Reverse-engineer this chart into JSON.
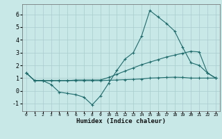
{
  "xlabel": "Humidex (Indice chaleur)",
  "background_color": "#c8e8e8",
  "grid_color": "#aacccc",
  "line_color": "#1e6b6b",
  "x_ticks": [
    0,
    1,
    2,
    3,
    4,
    5,
    6,
    7,
    8,
    9,
    10,
    11,
    12,
    13,
    14,
    15,
    16,
    17,
    18,
    19,
    20,
    21,
    22,
    23
  ],
  "y_ticks": [
    -1,
    0,
    1,
    2,
    3,
    4,
    5,
    6
  ],
  "xlim": [
    -0.5,
    23.5
  ],
  "ylim": [
    -1.6,
    6.8
  ],
  "series": [
    {
      "x": [
        0,
        1,
        2,
        3,
        4,
        5,
        6,
        7,
        8,
        9,
        10,
        11,
        12,
        13,
        14,
        15,
        16,
        17,
        18,
        19,
        20,
        21,
        22,
        23
      ],
      "y": [
        1.4,
        0.8,
        0.8,
        0.5,
        -0.1,
        -0.2,
        -0.3,
        -0.5,
        -1.1,
        -0.4,
        0.6,
        1.6,
        2.5,
        3.0,
        4.3,
        6.3,
        5.8,
        5.3,
        4.7,
        3.4,
        2.2,
        2.0,
        1.4,
        1.0
      ]
    },
    {
      "x": [
        0,
        1,
        2,
        3,
        4,
        5,
        6,
        7,
        8,
        9,
        10,
        11,
        12,
        13,
        14,
        15,
        16,
        17,
        18,
        19,
        20,
        21,
        22,
        23
      ],
      "y": [
        1.4,
        0.8,
        0.8,
        0.8,
        0.8,
        0.8,
        0.85,
        0.85,
        0.85,
        0.85,
        1.05,
        1.3,
        1.55,
        1.8,
        2.05,
        2.25,
        2.45,
        2.65,
        2.8,
        2.95,
        3.1,
        3.05,
        1.4,
        1.0
      ]
    },
    {
      "x": [
        0,
        1,
        2,
        3,
        4,
        5,
        6,
        7,
        8,
        9,
        10,
        11,
        12,
        13,
        14,
        15,
        16,
        17,
        18,
        19,
        20,
        21,
        22,
        23
      ],
      "y": [
        1.4,
        0.8,
        0.8,
        0.8,
        0.8,
        0.8,
        0.8,
        0.8,
        0.8,
        0.8,
        0.83,
        0.85,
        0.88,
        0.9,
        0.93,
        1.0,
        1.02,
        1.05,
        1.07,
        1.05,
        1.0,
        1.0,
        1.0,
        1.0
      ]
    }
  ]
}
